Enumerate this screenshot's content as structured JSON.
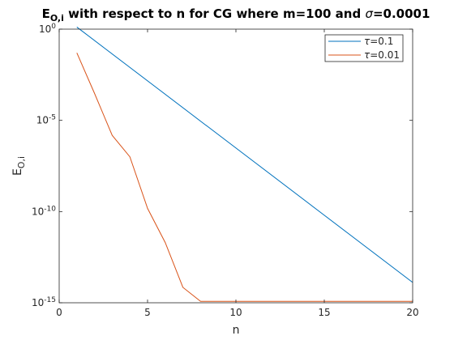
{
  "chart_data": {
    "type": "line",
    "title": {
      "main": "E",
      "main_sub": "O,i",
      "rest": " with respect to n for CG where m=100 and ",
      "sigma_symbol": "σ",
      "sigma_value": "=0.0001"
    },
    "xlabel": "n",
    "ylabel": {
      "main": "E",
      "sub": "O,i"
    },
    "xlim": [
      0,
      20
    ],
    "ylim": [
      1e-15,
      1
    ],
    "yscale": "log",
    "grid": false,
    "legend_position": "top-right",
    "x_ticks": [
      "0",
      "5",
      "10",
      "15",
      "20"
    ],
    "y_ticks": [
      {
        "base": "10",
        "exp": "0"
      },
      {
        "base": "10",
        "exp": "-5"
      },
      {
        "base": "10",
        "exp": "-10"
      },
      {
        "base": "10",
        "exp": "-15"
      }
    ],
    "series": [
      {
        "symbol": "τ",
        "label": "=0.1",
        "color": "#0072bd",
        "x": [
          1,
          20
        ],
        "y": [
          1.3,
          1.3e-14
        ]
      },
      {
        "symbol": "τ",
        "label": "=0.01",
        "color": "#d95319",
        "x": [
          1,
          2,
          3,
          4,
          5,
          6,
          7,
          8,
          9,
          10,
          11,
          12,
          13,
          14,
          15,
          16,
          17,
          18,
          19,
          20
        ],
        "y": [
          0.05,
          0.0003,
          1.5e-06,
          1e-07,
          1.5e-10,
          2e-12,
          7e-15,
          1.2e-15,
          1.2e-15,
          1.2e-15,
          1.2e-15,
          1.2e-15,
          1.2e-15,
          1.2e-15,
          1.2e-15,
          1.2e-15,
          1.2e-15,
          1.2e-15,
          1.2e-15,
          1.2e-15
        ]
      }
    ]
  }
}
